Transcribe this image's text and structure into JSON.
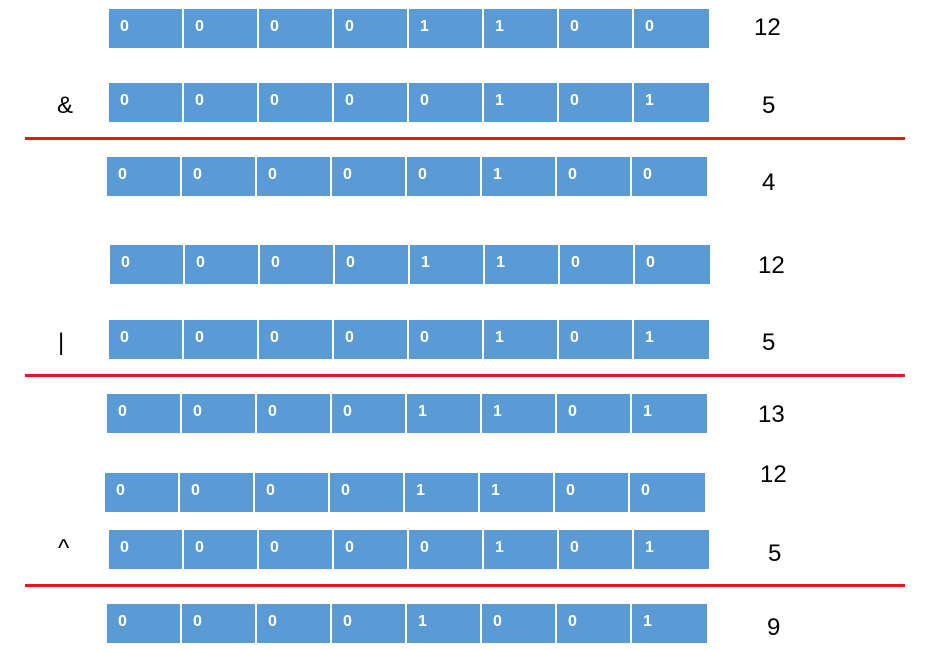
{
  "rows": [
    {
      "bits": [
        "0",
        "0",
        "0",
        "0",
        "1",
        "1",
        "0",
        "0"
      ],
      "value": "12",
      "operator": ""
    },
    {
      "bits": [
        "0",
        "0",
        "0",
        "0",
        "0",
        "1",
        "0",
        "1"
      ],
      "value": "5",
      "operator": "&"
    },
    {
      "bits": [
        "0",
        "0",
        "0",
        "0",
        "0",
        "1",
        "0",
        "0"
      ],
      "value": "4",
      "operator": ""
    },
    {
      "bits": [
        "0",
        "0",
        "0",
        "0",
        "1",
        "1",
        "0",
        "0"
      ],
      "value": "12",
      "operator": ""
    },
    {
      "bits": [
        "0",
        "0",
        "0",
        "0",
        "0",
        "1",
        "0",
        "1"
      ],
      "value": "5",
      "operator": "|"
    },
    {
      "bits": [
        "0",
        "0",
        "0",
        "0",
        "1",
        "1",
        "0",
        "1"
      ],
      "value": "13",
      "operator": ""
    },
    {
      "bits": [
        "0",
        "0",
        "0",
        "0",
        "1",
        "1",
        "0",
        "0"
      ],
      "value": "12",
      "operator": ""
    },
    {
      "bits": [
        "0",
        "0",
        "0",
        "0",
        "0",
        "1",
        "0",
        "1"
      ],
      "value": "5",
      "operator": "^"
    },
    {
      "bits": [
        "0",
        "0",
        "0",
        "0",
        "1",
        "0",
        "0",
        "1"
      ],
      "value": "9",
      "operator": ""
    }
  ],
  "colors": {
    "cell": "#5b9bd5",
    "separator": "#e31a1c"
  }
}
